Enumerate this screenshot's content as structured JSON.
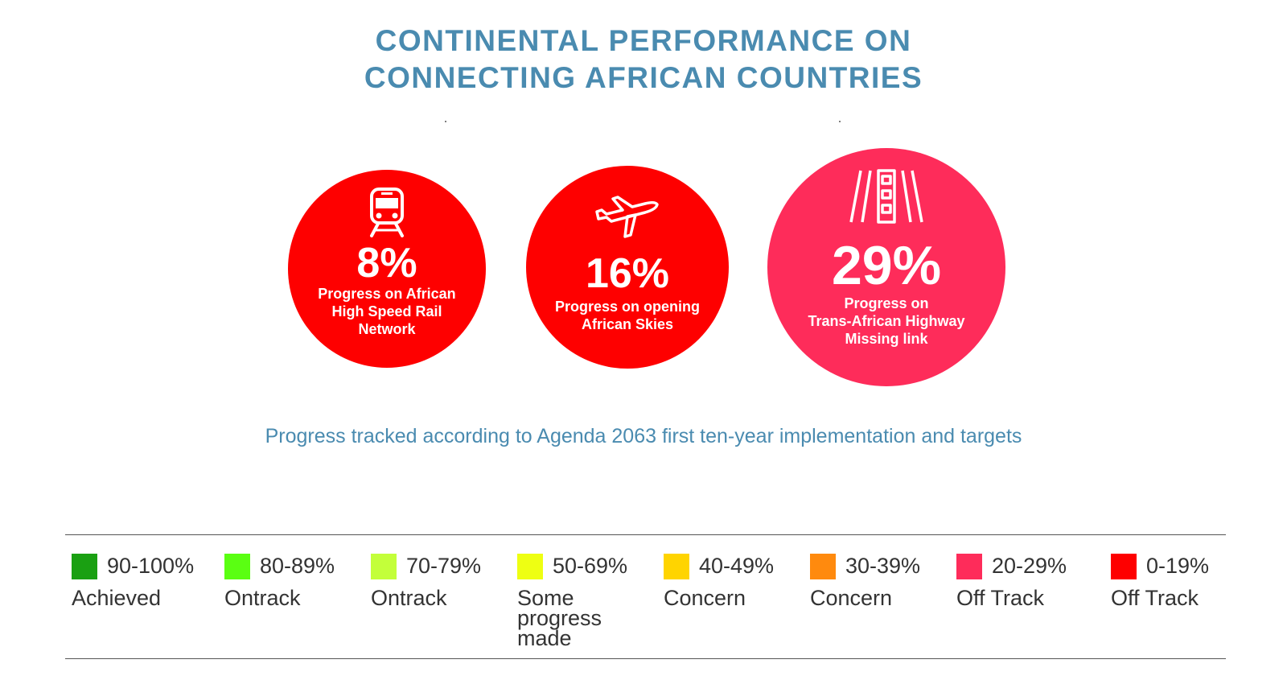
{
  "title": {
    "line1": "CONTINENTAL PERFORMANCE ON",
    "line2": "CONNECTING AFRICAN COUNTRIES"
  },
  "indicators": [
    {
      "value": "8%",
      "label_lines": [
        "Progress on African",
        "High Speed Rail",
        "Network"
      ],
      "color": "#fe0000",
      "icon": "train-icon"
    },
    {
      "value": "16%",
      "label_lines": [
        "Progress on opening",
        "African Skies"
      ],
      "color": "#fe0000",
      "icon": "airplane-icon"
    },
    {
      "value": "29%",
      "label_lines": [
        "Progress on",
        "Trans-African Highway",
        "Missing link"
      ],
      "color": "#fe2c5a",
      "icon": "road-icon"
    }
  ],
  "subtitle": "Progress tracked according to Agenda 2063 first ten-year implementation and targets",
  "legend": [
    {
      "range": "90-100%",
      "status": "Achieved",
      "color": "#1aa012"
    },
    {
      "range": "80-89%",
      "status": "Ontrack",
      "color": "#5aff12"
    },
    {
      "range": "70-79%",
      "status": "Ontrack",
      "color": "#c3ff3a"
    },
    {
      "range": "50-69%",
      "status": "Some progress made",
      "color": "#eeff12"
    },
    {
      "range": "40-49%",
      "status": "Concern",
      "color": "#ffd400"
    },
    {
      "range": "30-39%",
      "status": "Concern",
      "color": "#ff8a0e"
    },
    {
      "range": "20-29%",
      "status": "Off Track",
      "color": "#fe2c5a"
    },
    {
      "range": "0-19%",
      "status": "Off Track",
      "color": "#fe0000"
    }
  ]
}
